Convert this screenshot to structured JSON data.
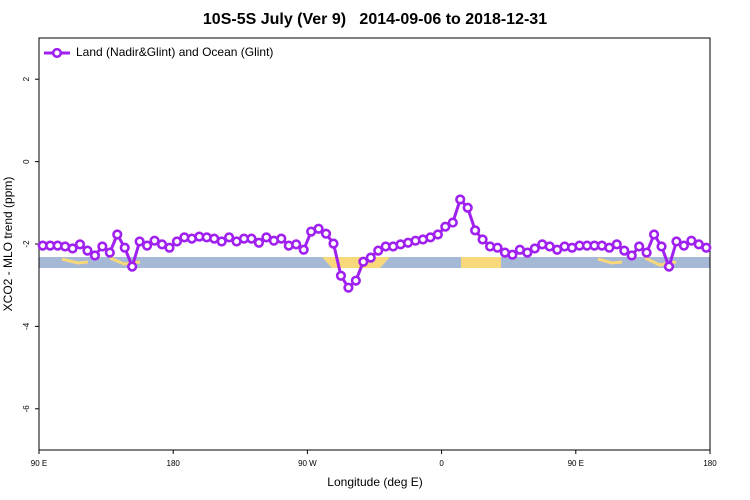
{
  "chart_data": {
    "type": "line",
    "title": "10S-5S July (Ver 9)   2014-09-06 to 2018-12-31",
    "x_label": "Longitude (deg E)",
    "y_label": "XCO2 - MLO trend (ppm)",
    "xlim": [
      90,
      540
    ],
    "xticks": [
      {
        "value": 90,
        "label": "90 E"
      },
      180,
      {
        "value": 270,
        "label": "90 W"
      },
      {
        "value": 360,
        "label": "0"
      },
      {
        "value": 450,
        "label": "90 E"
      },
      {
        "value": 540,
        "label": "180"
      }
    ],
    "ylim": [
      -7,
      3
    ],
    "yticks": [
      2,
      0,
      -2,
      -4,
      -6
    ],
    "legend": "top-left",
    "x": [
      92.5,
      97.5,
      102.5,
      107.5,
      112.5,
      117.5,
      122.5,
      127.5,
      132.5,
      137.5,
      142.5,
      147.5,
      152.5,
      157.5,
      162.5,
      167.5,
      172.5,
      177.5,
      182.5,
      187.5,
      192.5,
      197.5,
      202.5,
      207.5,
      212.5,
      217.5,
      222.5,
      227.5,
      232.5,
      237.5,
      242.5,
      247.5,
      252.5,
      257.5,
      262.5,
      267.5,
      272.5,
      277.5,
      282.5,
      287.5,
      292.5,
      297.5,
      302.5,
      307.5,
      312.5,
      317.5,
      322.5,
      327.5,
      332.5,
      337.5,
      342.5,
      347.5,
      352.5,
      357.5,
      362.5,
      367.5,
      372.5,
      377.5,
      382.5,
      387.5,
      392.5,
      397.5,
      402.5,
      407.5,
      412.5,
      417.5,
      422.5,
      427.5,
      432.5,
      437.5,
      442.5,
      447.5,
      452.5,
      457.5,
      462.5,
      467.5,
      472.5,
      477.5,
      482.5,
      487.5,
      492.5,
      497.5,
      502.5,
      507.5,
      512.5,
      517.5,
      522.5,
      527.5,
      532.5,
      537.5
    ],
    "series": [
      {
        "name": "Land (Nadir&Glint) and Ocean (Glint)",
        "color": "#a020f0",
        "values": [
          -2.04,
          -2.04,
          -2.04,
          -2.06,
          -2.11,
          -2.01,
          -2.16,
          -2.28,
          -2.06,
          -2.21,
          -1.77,
          -2.09,
          -2.55,
          -1.94,
          -2.04,
          -1.92,
          -2.01,
          -2.09,
          -1.94,
          -1.84,
          -1.87,
          -1.82,
          -1.84,
          -1.87,
          -1.94,
          -1.84,
          -1.94,
          -1.87,
          -1.87,
          -1.97,
          -1.84,
          -1.92,
          -1.87,
          -2.04,
          -2.01,
          -2.14,
          -1.7,
          -1.63,
          -1.75,
          -1.99,
          -2.77,
          -3.06,
          -2.89,
          -2.43,
          -2.33,
          -2.16,
          -2.06,
          -2.06,
          -2.01,
          -1.97,
          -1.92,
          -1.89,
          -1.84,
          -1.77,
          -1.58,
          -1.48,
          -0.92,
          -1.12,
          -1.67,
          -1.89,
          -2.06,
          -2.09,
          -2.21,
          -2.26,
          -2.14,
          -2.21,
          -2.11,
          -2.01,
          -2.06,
          -2.14,
          -2.06,
          -2.09,
          -2.04,
          -2.04,
          -2.04,
          -2.04,
          -2.09,
          -2.01,
          -2.16,
          -2.28,
          -2.06,
          -2.21,
          -1.77,
          -2.06,
          -2.55,
          -1.94,
          -2.04,
          -1.92,
          -2.01,
          -2.09
        ]
      }
    ]
  }
}
